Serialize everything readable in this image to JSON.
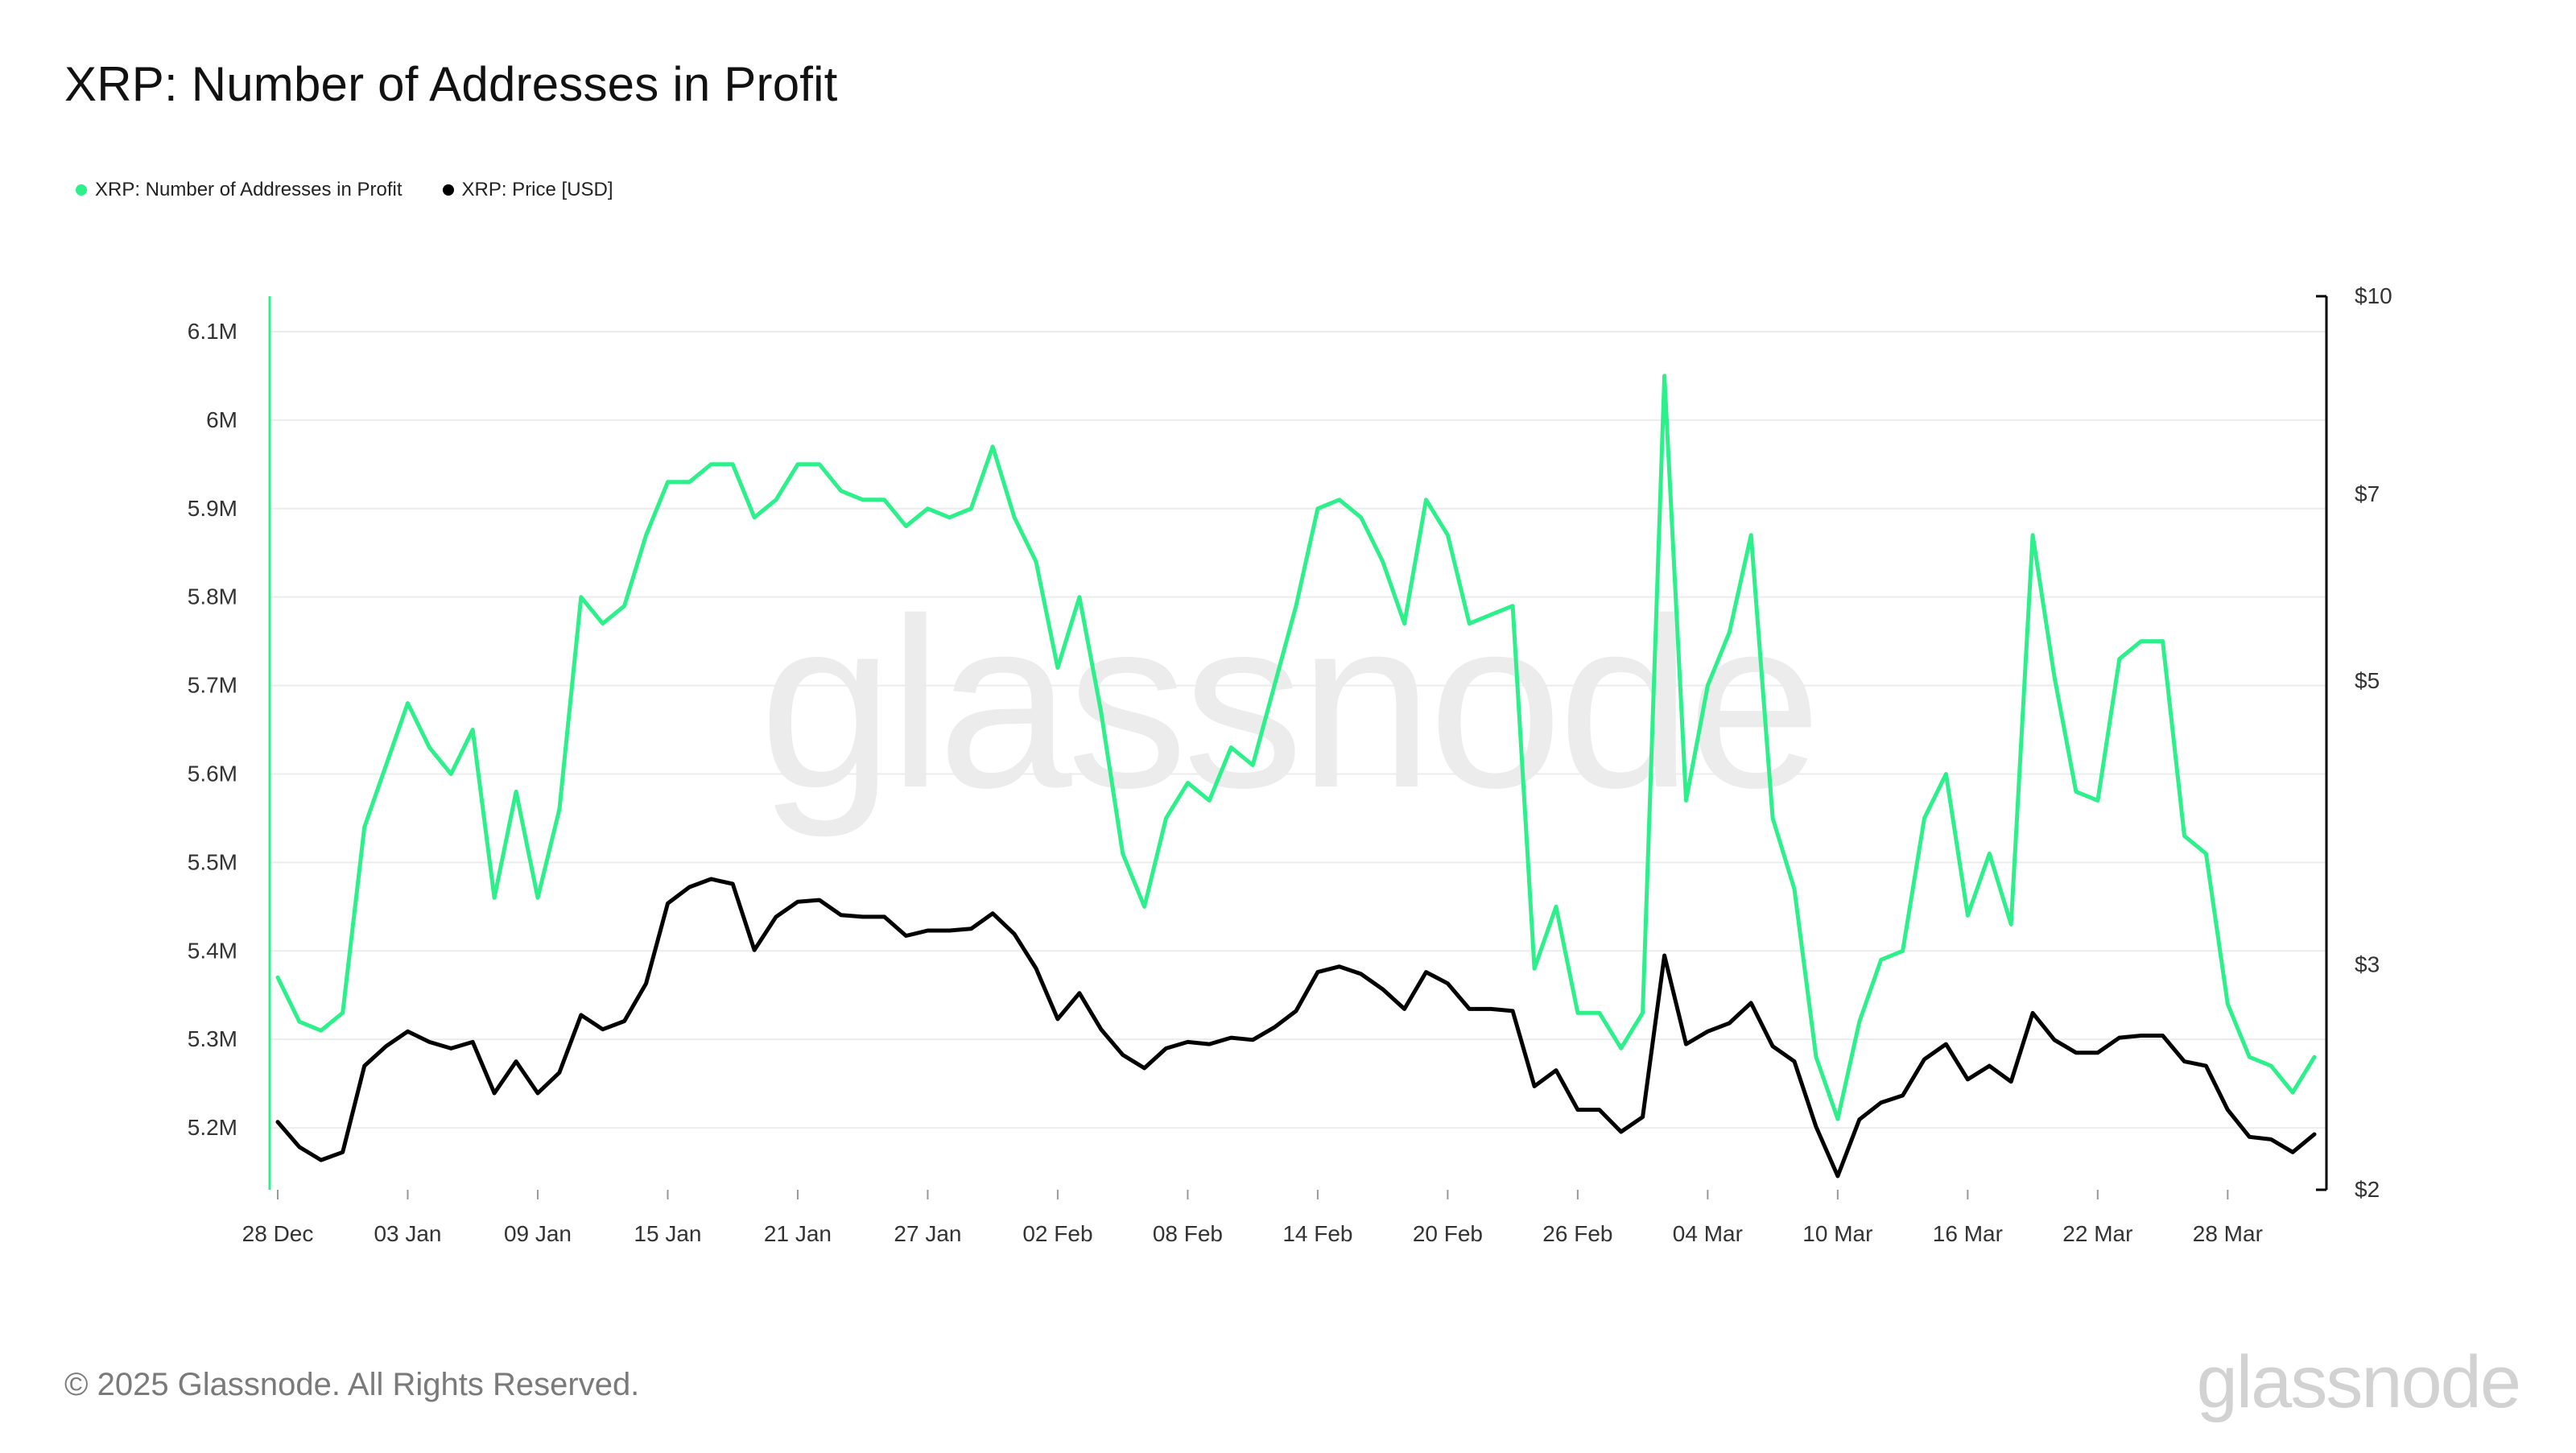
{
  "title": "XRP: Number of Addresses in Profit",
  "footer": "© 2025 Glassnode. All Rights Reserved.",
  "brand": "glassnode",
  "watermark": "glassnode",
  "colors": {
    "addresses": "#2cf08a",
    "price": "#000000",
    "grid": "#ececec"
  },
  "legend": [
    {
      "label": "XRP: Number of Addresses in Profit",
      "color": "#2cf08a"
    },
    {
      "label": "XRP: Price [USD]",
      "color": "#000000"
    }
  ],
  "chart_data": {
    "type": "line",
    "x_range": [
      "2024-12-28",
      "2025-04-01"
    ],
    "x_tick_labels": [
      "28 Dec",
      "03 Jan",
      "09 Jan",
      "15 Jan",
      "21 Jan",
      "27 Jan",
      "02 Feb",
      "08 Feb",
      "14 Feb",
      "20 Feb",
      "26 Feb",
      "04 Mar",
      "10 Mar",
      "16 Mar",
      "22 Mar",
      "28 Mar"
    ],
    "left_axis": {
      "scale": "linear",
      "range": [
        5.13,
        6.14
      ],
      "ticks": [
        5.2,
        5.3,
        5.4,
        5.5,
        5.6,
        5.7,
        5.8,
        5.9,
        6.0,
        6.1
      ],
      "tick_labels": [
        "5.2M",
        "5.3M",
        "5.4M",
        "5.5M",
        "5.6M",
        "5.7M",
        "5.8M",
        "5.9M",
        "6M",
        "6.1M"
      ]
    },
    "right_axis": {
      "scale": "log",
      "range": [
        2,
        10
      ],
      "ticks": [
        2,
        3,
        5,
        7,
        10
      ],
      "tick_labels": [
        "$2",
        "$3",
        "$5",
        "$7",
        "$10"
      ]
    },
    "grid": true,
    "legend_position": "top-left",
    "series": [
      {
        "name": "XRP: Number of Addresses in Profit",
        "axis": "left",
        "unit": "M",
        "values": [
          5.37,
          5.32,
          5.31,
          5.33,
          5.54,
          5.61,
          5.68,
          5.63,
          5.6,
          5.65,
          5.46,
          5.58,
          5.46,
          5.56,
          5.8,
          5.77,
          5.79,
          5.87,
          5.93,
          5.93,
          5.95,
          5.95,
          5.89,
          5.91,
          5.95,
          5.95,
          5.92,
          5.91,
          5.91,
          5.88,
          5.9,
          5.89,
          5.9,
          5.97,
          5.89,
          5.84,
          5.72,
          5.8,
          5.67,
          5.51,
          5.45,
          5.55,
          5.59,
          5.57,
          5.63,
          5.61,
          5.7,
          5.79,
          5.9,
          5.91,
          5.89,
          5.84,
          5.77,
          5.91,
          5.87,
          5.77,
          5.78,
          5.79,
          5.38,
          5.45,
          5.33,
          5.33,
          5.29,
          5.33,
          6.05,
          5.57,
          5.7,
          5.76,
          5.87,
          5.55,
          5.47,
          5.28,
          5.21,
          5.32,
          5.39,
          5.4,
          5.55,
          5.6,
          5.44,
          5.51,
          5.43,
          5.87,
          5.71,
          5.58,
          5.57,
          5.73,
          5.75,
          5.75,
          5.53,
          5.51,
          5.34,
          5.28,
          5.27,
          5.24,
          5.28
        ]
      },
      {
        "name": "XRP: Price [USD]",
        "axis": "right",
        "unit": "USD",
        "values": [
          2.26,
          2.16,
          2.11,
          2.14,
          2.5,
          2.59,
          2.66,
          2.61,
          2.58,
          2.61,
          2.38,
          2.52,
          2.38,
          2.47,
          2.74,
          2.67,
          2.71,
          2.9,
          3.35,
          3.45,
          3.5,
          3.47,
          3.08,
          3.27,
          3.36,
          3.37,
          3.28,
          3.27,
          3.27,
          3.16,
          3.19,
          3.19,
          3.2,
          3.29,
          3.17,
          2.98,
          2.72,
          2.85,
          2.67,
          2.55,
          2.49,
          2.58,
          2.61,
          2.6,
          2.63,
          2.62,
          2.68,
          2.76,
          2.96,
          2.99,
          2.95,
          2.87,
          2.77,
          2.96,
          2.9,
          2.77,
          2.77,
          2.76,
          2.41,
          2.48,
          2.31,
          2.31,
          2.22,
          2.28,
          3.05,
          2.6,
          2.66,
          2.7,
          2.8,
          2.59,
          2.52,
          2.24,
          2.05,
          2.27,
          2.34,
          2.37,
          2.53,
          2.6,
          2.44,
          2.5,
          2.43,
          2.75,
          2.62,
          2.56,
          2.56,
          2.63,
          2.64,
          2.64,
          2.52,
          2.5,
          2.31,
          2.2,
          2.19,
          2.14,
          2.21
        ]
      }
    ]
  }
}
